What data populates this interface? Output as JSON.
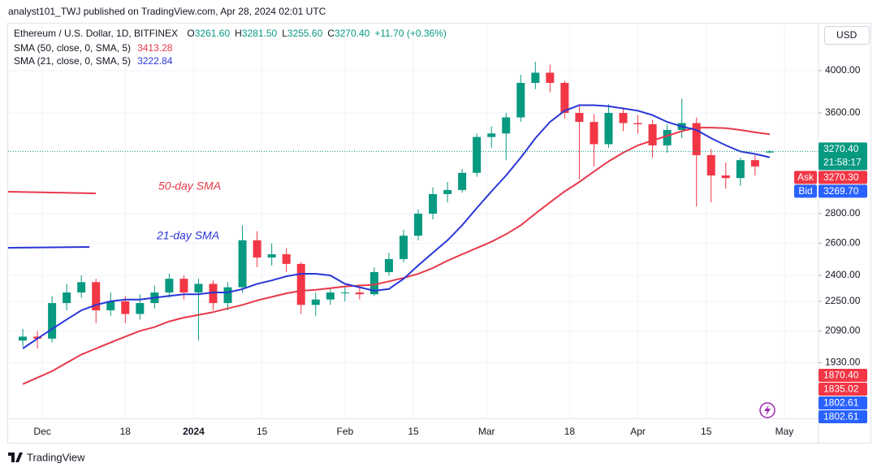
{
  "header": "analyst101_TWJ published on TradingView.com, Apr 28, 2024 02:01 UTC",
  "footer": "TradingView",
  "chart_data": {
    "type": "candlestick",
    "symbol": "Ethereum / U.S. Dollar, 1D, BITFINEX",
    "ohlc_labels": [
      {
        "key": "O",
        "label": "3261.60"
      },
      {
        "key": "H",
        "label": "3281.50"
      },
      {
        "key": "L",
        "label": "3255.60"
      },
      {
        "key": "C",
        "label": "3270.40"
      }
    ],
    "change_label": "+11.70 (+0.36%)",
    "currency": "USD",
    "up_color": "#089981",
    "down_color": "#f23645",
    "log_scale": true,
    "grid": true,
    "x": [
      "2023-11-27",
      "2023-11-30",
      "2023-12-03",
      "2023-12-06",
      "2023-12-09",
      "2023-12-12",
      "2023-12-15",
      "2023-12-18",
      "2023-12-21",
      "2023-12-24",
      "2023-12-27",
      "2023-12-30",
      "2024-01-02",
      "2024-01-05",
      "2024-01-08",
      "2024-01-11",
      "2024-01-14",
      "2024-01-17",
      "2024-01-20",
      "2024-01-23",
      "2024-01-26",
      "2024-01-29",
      "2024-02-01",
      "2024-02-04",
      "2024-02-07",
      "2024-02-10",
      "2024-02-13",
      "2024-02-16",
      "2024-02-19",
      "2024-02-22",
      "2024-02-25",
      "2024-02-28",
      "2024-03-02",
      "2024-03-05",
      "2024-03-08",
      "2024-03-11",
      "2024-03-14",
      "2024-03-17",
      "2024-03-20",
      "2024-03-23",
      "2024-03-26",
      "2024-03-29",
      "2024-04-01",
      "2024-04-04",
      "2024-04-07",
      "2024-04-10",
      "2024-04-13",
      "2024-04-16",
      "2024-04-19",
      "2024-04-22",
      "2024-04-25",
      "2024-04-28"
    ],
    "open": [
      2040,
      2060,
      2050,
      2240,
      2300,
      2360,
      2200,
      2250,
      2180,
      2240,
      2300,
      2380,
      2300,
      2350,
      2240,
      2330,
      2620,
      2510,
      2530,
      2470,
      2230,
      2260,
      2300,
      2300,
      2290,
      2420,
      2500,
      2650,
      2800,
      2940,
      2970,
      3100,
      3390,
      3420,
      3560,
      3880,
      3980,
      3880,
      3600,
      3520,
      3330,
      3600,
      3510,
      3500,
      3320,
      3450,
      3510,
      3240,
      3080,
      3060,
      3200,
      3261.6
    ],
    "high": [
      2100,
      2090,
      2280,
      2350,
      2400,
      2380,
      2300,
      2280,
      2290,
      2340,
      2410,
      2400,
      2380,
      2370,
      2360,
      2720,
      2680,
      2600,
      2570,
      2480,
      2300,
      2330,
      2340,
      2330,
      2450,
      2540,
      2690,
      2830,
      2990,
      3030,
      3130,
      3420,
      3480,
      3600,
      3960,
      4090,
      4060,
      3900,
      3680,
      3590,
      3680,
      3650,
      3580,
      3540,
      3500,
      3730,
      3560,
      3290,
      3180,
      3220,
      3240,
      3281.5
    ],
    "low": [
      2010,
      2000,
      2030,
      2200,
      2270,
      2130,
      2170,
      2130,
      2150,
      2210,
      2270,
      2260,
      2040,
      2200,
      2200,
      2300,
      2450,
      2460,
      2420,
      2180,
      2170,
      2230,
      2250,
      2260,
      2280,
      2400,
      2480,
      2620,
      2760,
      2880,
      2950,
      3070,
      3300,
      3200,
      3520,
      3820,
      3790,
      3550,
      3050,
      3150,
      3300,
      3440,
      3420,
      3220,
      3260,
      3380,
      2850,
      2880,
      2980,
      3000,
      3080,
      3255.6
    ],
    "close": [
      2060,
      2050,
      2240,
      2300,
      2360,
      2200,
      2250,
      2180,
      2240,
      2300,
      2380,
      2300,
      2350,
      2240,
      2330,
      2620,
      2510,
      2530,
      2470,
      2230,
      2260,
      2300,
      2300,
      2290,
      2420,
      2500,
      2650,
      2800,
      2940,
      2970,
      3100,
      3390,
      3420,
      3560,
      3880,
      3980,
      3880,
      3600,
      3520,
      3330,
      3600,
      3510,
      3500,
      3320,
      3450,
      3510,
      3240,
      3080,
      3060,
      3200,
      3150,
      3270.4
    ],
    "series": [
      {
        "name": "SMA (50, close, 0, SMA, 5)",
        "color": "#e8394a",
        "last_label": "3413.28",
        "values": [
          1830,
          1860,
          1890,
          1930,
          1970,
          2000,
          2030,
          2060,
          2090,
          2110,
          2140,
          2160,
          2175,
          2190,
          2210,
          2230,
          2255,
          2275,
          2295,
          2310,
          2315,
          2325,
          2335,
          2340,
          2345,
          2365,
          2385,
          2410,
          2445,
          2490,
          2530,
          2570,
          2610,
          2660,
          2720,
          2800,
          2880,
          2960,
          3030,
          3110,
          3190,
          3260,
          3320,
          3360,
          3400,
          3440,
          3470,
          3470,
          3465,
          3450,
          3430,
          3413.28
        ]
      },
      {
        "name": "SMA (21, close, 0, SMA, 5)",
        "color": "#2936d6",
        "last_label": "3222.84",
        "values": [
          2000,
          2050,
          2100,
          2150,
          2200,
          2230,
          2250,
          2260,
          2260,
          2270,
          2280,
          2290,
          2290,
          2300,
          2300,
          2320,
          2350,
          2370,
          2395,
          2410,
          2410,
          2400,
          2350,
          2330,
          2310,
          2320,
          2380,
          2460,
          2540,
          2620,
          2720,
          2840,
          2960,
          3080,
          3220,
          3380,
          3520,
          3620,
          3670,
          3670,
          3660,
          3640,
          3620,
          3580,
          3520,
          3480,
          3450,
          3380,
          3320,
          3270,
          3250,
          3222.84
        ]
      }
    ],
    "annotations": [
      {
        "text": "50-day SMA",
        "color": "#e8394a"
      },
      {
        "text": "21-day SMA",
        "color": "#2936d6"
      }
    ],
    "xlim": [
      "2023-11-24",
      "2024-05-08"
    ],
    "xticks": [
      {
        "value": "2023-12-01",
        "label": "Dec"
      },
      {
        "value": "2023-12-18",
        "label": "18"
      },
      {
        "value": "2024-01-01",
        "label": "2024"
      },
      {
        "value": "2024-01-15",
        "label": "15"
      },
      {
        "value": "2024-02-01",
        "label": "Feb"
      },
      {
        "value": "2024-02-15",
        "label": "15"
      },
      {
        "value": "2024-03-01",
        "label": "Mar"
      },
      {
        "value": "2024-03-18",
        "label": "18"
      },
      {
        "value": "2024-04-01",
        "label": "Apr"
      },
      {
        "value": "2024-04-15",
        "label": "15"
      },
      {
        "value": "2024-05-01",
        "label": "May"
      }
    ],
    "ylim": [
      1680,
      4490
    ],
    "yticks": [
      {
        "value": 1930,
        "label": "1930.00"
      },
      {
        "value": 2090,
        "label": "2090.00"
      },
      {
        "value": 2250,
        "label": "2250.00"
      },
      {
        "value": 2400,
        "label": "2400.00"
      },
      {
        "value": 2600,
        "label": "2600.00"
      },
      {
        "value": 2800,
        "label": "2800.00"
      },
      {
        "value": 3600,
        "label": "3600.00"
      },
      {
        "value": 4000,
        "label": "4000.00"
      }
    ],
    "price_labels": [
      {
        "value": 3270.4,
        "label": "3270.40",
        "sub": "21:58:17",
        "color": "#089981"
      },
      {
        "value": 3270.3,
        "label": "3270.30",
        "name": "Ask",
        "color": "#f23645"
      },
      {
        "value": 3269.7,
        "label": "3269.70",
        "name": "Bid",
        "color": "#2962ff"
      },
      {
        "value": 1870.4,
        "label": "1870.40",
        "color": "#f23645"
      },
      {
        "value": 1835.02,
        "label": "1835.02",
        "color": "#f23645"
      },
      {
        "value": 1802.61,
        "label": "1802.61",
        "color": "#2962ff"
      },
      {
        "value": 1802.61,
        "label": "1802.61",
        "color": "#2962ff"
      }
    ]
  }
}
